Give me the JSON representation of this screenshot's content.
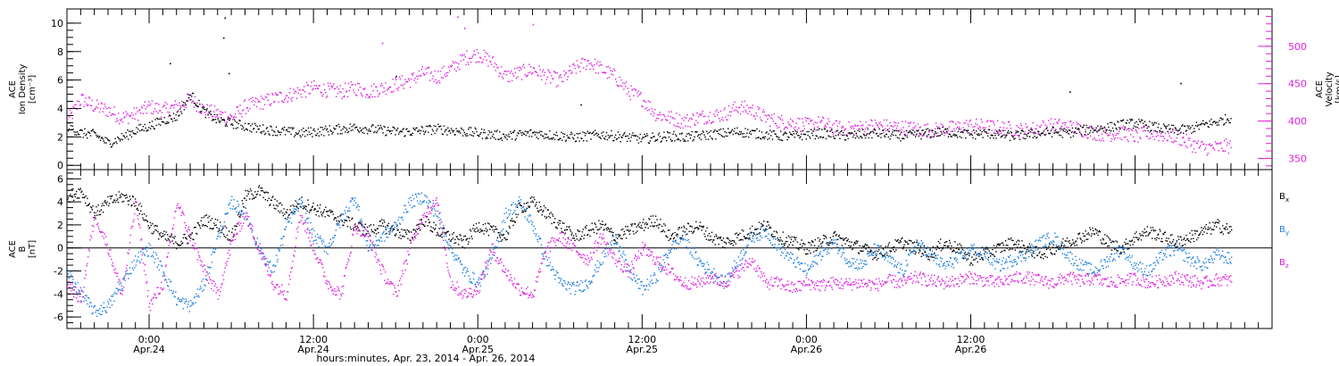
{
  "footer_label": "hours:minutes, Apr. 23, 2014 - Apr. 26, 2014",
  "chart_data": [
    {
      "type": "scatter",
      "panel": "top",
      "title": "",
      "left_axis": {
        "label": [
          "ACE",
          "Ion Density",
          "[cm⁻³]"
        ],
        "ylim": [
          -0.3,
          11
        ],
        "ticks": [
          0,
          2,
          4,
          6,
          8,
          10
        ],
        "color": "#000000"
      },
      "right_axis": {
        "label": [
          "ACE",
          "Velocity",
          "[km/s]"
        ],
        "ylim": [
          335,
          550
        ],
        "ticks": [
          350,
          400,
          450,
          500
        ],
        "color": "#e020e0"
      },
      "x_axis": {
        "unit": "hours since 00:00 Apr. 23, 2014",
        "range": [
          18,
          106
        ]
      },
      "grid": false,
      "series": [
        {
          "quantity": "density",
          "axis": "left",
          "color": "#000000",
          "x": [
            18,
            19,
            20,
            21,
            22,
            23,
            24,
            25,
            26,
            27,
            28,
            29,
            30,
            31,
            32,
            33,
            34,
            35,
            36,
            37,
            38,
            39,
            40,
            41,
            42,
            43,
            44,
            45,
            46,
            47,
            48,
            49,
            50,
            51,
            52,
            53,
            54,
            55,
            56,
            57,
            58,
            59,
            60,
            61,
            62,
            63,
            64,
            65,
            66,
            67,
            68,
            69,
            70,
            71,
            72,
            73,
            74,
            75,
            76,
            77,
            78,
            79,
            80,
            81,
            82,
            83,
            84,
            85,
            86,
            87,
            88,
            89,
            90,
            91,
            92,
            93,
            94,
            95,
            96,
            97,
            98,
            99,
            100,
            101,
            102,
            103
          ],
          "y": [
            2.8,
            2.3,
            2.2,
            1.6,
            2.0,
            2.5,
            2.8,
            3.2,
            3.5,
            5.0,
            3.8,
            3.2,
            3.0,
            2.8,
            2.6,
            2.5,
            2.4,
            2.3,
            2.4,
            2.5,
            2.6,
            2.7,
            2.6,
            2.5,
            2.4,
            2.4,
            2.5,
            2.6,
            2.5,
            2.4,
            2.3,
            2.2,
            2.1,
            2.2,
            2.3,
            2.2,
            2.1,
            2.0,
            2.1,
            2.2,
            2.1,
            2.0,
            1.9,
            2.0,
            2.1,
            2.0,
            2.1,
            2.2,
            2.3,
            2.4,
            2.3,
            2.2,
            2.1,
            2.1,
            2.2,
            2.3,
            2.2,
            2.1,
            2.2,
            2.3,
            2.2,
            2.1,
            2.2,
            2.3,
            2.4,
            2.3,
            2.2,
            2.3,
            2.2,
            2.1,
            2.2,
            2.3,
            2.4,
            2.3,
            2.5,
            2.6,
            2.7,
            2.9,
            3.0,
            2.8,
            2.6,
            2.5,
            2.6,
            2.9,
            3.1,
            3.4
          ],
          "spikes": [
            [
              29.5,
              10.4
            ],
            [
              29.4,
              9.0
            ],
            [
              25.5,
              7.2
            ],
            [
              29.8,
              6.5
            ],
            [
              42.0,
              6.3
            ],
            [
              55.5,
              4.3
            ],
            [
              91.2,
              5.2
            ],
            [
              99.3,
              5.8
            ]
          ]
        },
        {
          "quantity": "velocity",
          "axis": "right",
          "color": "#e020e0",
          "x": [
            18,
            19,
            20,
            21,
            22,
            23,
            24,
            25,
            26,
            27,
            28,
            29,
            30,
            31,
            32,
            33,
            34,
            35,
            36,
            37,
            38,
            39,
            40,
            41,
            42,
            43,
            44,
            45,
            46,
            47,
            48,
            49,
            50,
            51,
            52,
            53,
            54,
            55,
            56,
            57,
            58,
            59,
            60,
            61,
            62,
            63,
            64,
            65,
            66,
            67,
            68,
            69,
            70,
            71,
            72,
            73,
            74,
            75,
            76,
            77,
            78,
            79,
            80,
            81,
            82,
            83,
            84,
            85,
            86,
            87,
            88,
            89,
            90,
            91,
            92,
            93,
            94,
            95,
            96,
            97,
            98,
            99,
            100,
            101,
            102,
            103
          ],
          "y": [
            400,
            430,
            420,
            415,
            405,
            410,
            420,
            415,
            420,
            430,
            415,
            410,
            405,
            420,
            425,
            430,
            435,
            440,
            445,
            442,
            440,
            445,
            440,
            445,
            450,
            455,
            465,
            460,
            470,
            485,
            490,
            480,
            460,
            465,
            470,
            460,
            455,
            470,
            480,
            470,
            460,
            440,
            430,
            410,
            405,
            400,
            405,
            408,
            410,
            420,
            415,
            405,
            400,
            398,
            395,
            398,
            392,
            390,
            392,
            395,
            393,
            392,
            390,
            388,
            390,
            392,
            395,
            393,
            392,
            390,
            388,
            392,
            395,
            393,
            390,
            385,
            383,
            385,
            380,
            385,
            382,
            380,
            370,
            365,
            365,
            368
          ],
          "spikes": [
            [
              41.0,
              505
            ],
            [
              46.5,
              540
            ],
            [
              47.0,
              525
            ],
            [
              52.0,
              530
            ]
          ]
        }
      ]
    },
    {
      "type": "scatter",
      "panel": "bottom",
      "title": "",
      "left_axis": {
        "label": [
          "ACE",
          "B",
          "[nT]"
        ],
        "ylim": [
          -7,
          6.8
        ],
        "ticks": [
          -6,
          -4,
          -2,
          0,
          2,
          4,
          6
        ]
      },
      "x_axis": {
        "unit": "hours since 00:00 Apr. 23, 2014",
        "range": [
          18,
          106
        ]
      },
      "zero_line": true,
      "grid": false,
      "legend": {
        "placement": "right",
        "entries": [
          {
            "label": "B",
            "sub": "x",
            "color": "#000000"
          },
          {
            "label": "B",
            "sub": "y",
            "color": "#1f7fe0"
          },
          {
            "label": "B",
            "sub": "z",
            "color": "#e020e0"
          }
        ]
      },
      "series": [
        {
          "name": "Bx",
          "color": "#000000",
          "x": [
            18,
            19,
            20,
            21,
            22,
            23,
            24,
            25,
            26,
            27,
            28,
            29,
            30,
            31,
            32,
            33,
            34,
            35,
            36,
            37,
            38,
            39,
            40,
            41,
            42,
            43,
            44,
            45,
            46,
            47,
            48,
            49,
            50,
            51,
            52,
            53,
            54,
            55,
            56,
            57,
            58,
            59,
            60,
            61,
            62,
            63,
            64,
            65,
            66,
            67,
            68,
            69,
            70,
            71,
            72,
            73,
            74,
            75,
            76,
            77,
            78,
            79,
            80,
            81,
            82,
            83,
            84,
            85,
            86,
            87,
            88,
            89,
            90,
            91,
            92,
            93,
            94,
            95,
            96,
            97,
            98,
            99,
            100,
            101,
            102,
            103
          ],
          "y": [
            4.5,
            5.0,
            3.0,
            4.0,
            4.5,
            4.0,
            2.0,
            1.0,
            0.5,
            1.0,
            2.5,
            2.0,
            1.0,
            4.5,
            5.0,
            4.0,
            3.0,
            4.0,
            3.5,
            3.0,
            2.5,
            2.0,
            1.5,
            2.0,
            1.5,
            1.0,
            2.5,
            1.5,
            1.0,
            0.5,
            2.0,
            1.5,
            1.0,
            3.5,
            4.0,
            3.0,
            2.0,
            1.0,
            1.5,
            2.0,
            1.0,
            1.5,
            2.0,
            2.5,
            1.0,
            1.5,
            2.0,
            1.0,
            0.5,
            1.0,
            1.5,
            2.0,
            1.0,
            0.5,
            0.0,
            0.5,
            1.0,
            0.5,
            0.0,
            -0.5,
            0.0,
            0.5,
            0.0,
            -0.5,
            0.5,
            0.0,
            -1.0,
            -0.5,
            0.0,
            0.5,
            0.0,
            -0.5,
            0.0,
            0.5,
            1.0,
            1.5,
            0.5,
            0.0,
            1.0,
            1.5,
            1.0,
            0.5,
            1.0,
            1.5,
            2.0,
            1.5
          ]
        },
        {
          "name": "By",
          "color": "#1f7fe0",
          "x": [
            18,
            19,
            20,
            21,
            22,
            23,
            24,
            25,
            26,
            27,
            28,
            29,
            30,
            31,
            32,
            33,
            34,
            35,
            36,
            37,
            38,
            39,
            40,
            41,
            42,
            43,
            44,
            45,
            46,
            47,
            48,
            49,
            50,
            51,
            52,
            53,
            54,
            55,
            56,
            57,
            58,
            59,
            60,
            61,
            62,
            63,
            64,
            65,
            66,
            67,
            68,
            69,
            70,
            71,
            72,
            73,
            74,
            75,
            76,
            77,
            78,
            79,
            80,
            81,
            82,
            83,
            84,
            85,
            86,
            87,
            88,
            89,
            90,
            91,
            92,
            93,
            94,
            95,
            96,
            97,
            98,
            99,
            100,
            101,
            102,
            103
          ],
          "y": [
            -2.0,
            -4.0,
            -5.5,
            -5.0,
            -3.0,
            -1.0,
            0.0,
            -2.0,
            -4.5,
            -5.0,
            -3.0,
            1.0,
            4.0,
            3.0,
            0.0,
            -2.0,
            2.0,
            4.0,
            1.0,
            0.0,
            2.5,
            4.5,
            0.0,
            1.0,
            2.0,
            4.0,
            4.5,
            3.0,
            0.0,
            -2.0,
            -3.0,
            -1.0,
            3.0,
            4.0,
            2.0,
            -1.0,
            -3.0,
            -3.5,
            -3.0,
            -1.0,
            1.0,
            -2.0,
            -3.5,
            -2.5,
            0.0,
            1.0,
            -1.0,
            -2.0,
            -3.0,
            -1.0,
            1.0,
            1.5,
            0.0,
            -1.0,
            -2.0,
            -0.5,
            0.5,
            -1.0,
            -1.5,
            0.0,
            -1.0,
            -2.0,
            0.5,
            -0.5,
            -1.5,
            -1.0,
            0.0,
            -0.5,
            -1.5,
            -1.0,
            -0.5,
            0.5,
            1.0,
            -0.5,
            -1.5,
            -2.0,
            -1.0,
            0.0,
            -1.5,
            -2.0,
            -0.5,
            0.0,
            -1.0,
            -1.5,
            -0.5,
            -1.0
          ]
        },
        {
          "name": "Bz",
          "color": "#e020e0",
          "x": [
            18,
            19,
            20,
            21,
            22,
            23,
            24,
            25,
            26,
            27,
            28,
            29,
            30,
            31,
            32,
            33,
            34,
            35,
            36,
            37,
            38,
            39,
            40,
            41,
            42,
            43,
            44,
            45,
            46,
            47,
            48,
            49,
            50,
            51,
            52,
            53,
            54,
            55,
            56,
            57,
            58,
            59,
            60,
            61,
            62,
            63,
            64,
            65,
            66,
            67,
            68,
            69,
            70,
            71,
            72,
            73,
            74,
            75,
            76,
            77,
            78,
            79,
            80,
            81,
            82,
            83,
            84,
            85,
            86,
            87,
            88,
            89,
            90,
            91,
            92,
            93,
            94,
            95,
            96,
            97,
            98,
            99,
            100,
            101,
            102,
            103
          ],
          "y": [
            -3.0,
            -4.5,
            3.0,
            0.0,
            -4.0,
            4.0,
            -5.0,
            -3.0,
            4.0,
            1.0,
            -2.0,
            -4.0,
            0.5,
            3.0,
            0.0,
            -3.0,
            -4.0,
            3.0,
            0.0,
            -3.0,
            -4.0,
            2.0,
            1.0,
            -2.0,
            -4.0,
            0.0,
            3.0,
            4.0,
            -3.0,
            -4.0,
            -3.5,
            0.0,
            -2.0,
            -3.5,
            -4.0,
            0.0,
            1.0,
            0.0,
            -1.0,
            1.0,
            -1.0,
            -2.0,
            0.0,
            -1.0,
            -2.0,
            -3.0,
            -3.0,
            -2.5,
            -3.0,
            -2.0,
            -1.0,
            -3.0,
            -3.0,
            -3.5,
            -3.0,
            -3.2,
            -3.0,
            -3.1,
            -3.0,
            -3.2,
            -2.8,
            -3.0,
            -2.5,
            -2.8,
            -3.0,
            -2.8,
            -2.5,
            -2.8,
            -3.0,
            -2.6,
            -2.5,
            -2.8,
            -3.0,
            -2.5,
            -2.8,
            -2.6,
            -3.0,
            -2.8,
            -2.6,
            -3.0,
            -2.8,
            -2.5,
            -2.8,
            -3.0,
            -2.7,
            -2.8
          ]
        }
      ]
    }
  ],
  "x_ticks": [
    {
      "time": "0:00",
      "date": "Apr.24"
    },
    {
      "time": "12:00",
      "date": "Apr.24"
    },
    {
      "time": "0:00",
      "date": "Apr.25"
    },
    {
      "time": "12:00",
      "date": "Apr.25"
    },
    {
      "time": "0:00",
      "date": "Apr.26"
    },
    {
      "time": "12:00",
      "date": "Apr.26"
    }
  ]
}
